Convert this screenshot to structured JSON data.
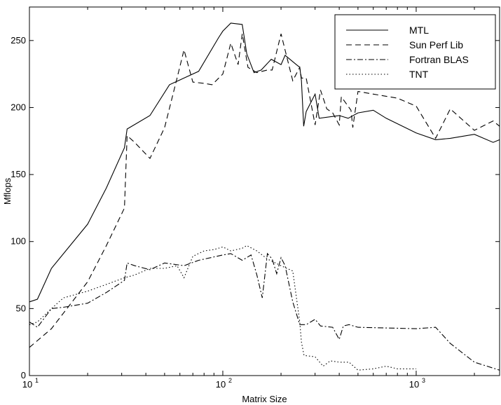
{
  "chart_data": {
    "type": "line",
    "title": "",
    "xlabel": "Matrix Size",
    "ylabel": "Mflops",
    "xscale": "log",
    "xlim": [
      10,
      2700
    ],
    "ylim": [
      0,
      275
    ],
    "grid": false,
    "legend_position": "top-right",
    "xticks": [
      {
        "value": 10,
        "base": "10",
        "exp": "1"
      },
      {
        "value": 100,
        "base": "10",
        "exp": "2"
      },
      {
        "value": 1000,
        "base": "10",
        "exp": "3"
      }
    ],
    "yticks": [
      "0",
      "50",
      "100",
      "150",
      "200",
      "250"
    ],
    "series": [
      {
        "name": "MTL",
        "dash": "solid",
        "points": [
          [
            10,
            55
          ],
          [
            11,
            57
          ],
          [
            13,
            80
          ],
          [
            20,
            113
          ],
          [
            25,
            140
          ],
          [
            31,
            170
          ],
          [
            32,
            184
          ],
          [
            42,
            194
          ],
          [
            53,
            217
          ],
          [
            63,
            222
          ],
          [
            75,
            227
          ],
          [
            95,
            252
          ],
          [
            100,
            257
          ],
          [
            110,
            263
          ],
          [
            126,
            262
          ],
          [
            133,
            240
          ],
          [
            145,
            226
          ],
          [
            158,
            228
          ],
          [
            178,
            236
          ],
          [
            200,
            232
          ],
          [
            210,
            239
          ],
          [
            240,
            232
          ],
          [
            250,
            230
          ],
          [
            255,
            220
          ],
          [
            262,
            186
          ],
          [
            270,
            197
          ],
          [
            300,
            210
          ],
          [
            315,
            192
          ],
          [
            400,
            194
          ],
          [
            445,
            192
          ],
          [
            500,
            196
          ],
          [
            600,
            198
          ],
          [
            700,
            192
          ],
          [
            1000,
            181
          ],
          [
            1260,
            176
          ],
          [
            1500,
            177
          ],
          [
            2000,
            180
          ],
          [
            2500,
            174
          ],
          [
            2700,
            176
          ]
        ]
      },
      {
        "name": "Sun Perf Lib",
        "dash": "dash",
        "points": [
          [
            10,
            21
          ],
          [
            13,
            35
          ],
          [
            20,
            70
          ],
          [
            25,
            97
          ],
          [
            31,
            125
          ],
          [
            32,
            179
          ],
          [
            35,
            174
          ],
          [
            42,
            162
          ],
          [
            50,
            185
          ],
          [
            58,
            222
          ],
          [
            63,
            243
          ],
          [
            70,
            219
          ],
          [
            80,
            218
          ],
          [
            88,
            217
          ],
          [
            100,
            225
          ],
          [
            110,
            248
          ],
          [
            120,
            232
          ],
          [
            126,
            255
          ],
          [
            135,
            230
          ],
          [
            150,
            226
          ],
          [
            170,
            228
          ],
          [
            180,
            228
          ],
          [
            200,
            255
          ],
          [
            230,
            220
          ],
          [
            250,
            230
          ],
          [
            255,
            222
          ],
          [
            270,
            222
          ],
          [
            300,
            187
          ],
          [
            320,
            213
          ],
          [
            345,
            199
          ],
          [
            370,
            196
          ],
          [
            400,
            187
          ],
          [
            410,
            208
          ],
          [
            460,
            198
          ],
          [
            470,
            185
          ],
          [
            500,
            212
          ],
          [
            600,
            210
          ],
          [
            800,
            207
          ],
          [
            1000,
            201
          ],
          [
            1260,
            177
          ],
          [
            1500,
            199
          ],
          [
            2000,
            183
          ],
          [
            2500,
            190
          ],
          [
            2700,
            186
          ]
        ]
      },
      {
        "name": "Fortran BLAS",
        "dash": "dashdot",
        "points": [
          [
            10,
            40
          ],
          [
            11,
            36
          ],
          [
            13,
            50
          ],
          [
            15,
            51
          ],
          [
            20,
            54
          ],
          [
            25,
            62
          ],
          [
            31,
            71
          ],
          [
            32,
            84
          ],
          [
            35,
            82
          ],
          [
            42,
            79
          ],
          [
            50,
            84
          ],
          [
            63,
            82
          ],
          [
            75,
            86
          ],
          [
            100,
            90
          ],
          [
            110,
            91
          ],
          [
            126,
            86
          ],
          [
            140,
            90
          ],
          [
            150,
            75
          ],
          [
            160,
            58
          ],
          [
            170,
            91
          ],
          [
            180,
            87
          ],
          [
            190,
            76
          ],
          [
            200,
            88
          ],
          [
            210,
            82
          ],
          [
            230,
            55
          ],
          [
            250,
            38
          ],
          [
            270,
            38
          ],
          [
            300,
            42
          ],
          [
            320,
            37
          ],
          [
            370,
            36
          ],
          [
            400,
            27
          ],
          [
            420,
            37
          ],
          [
            450,
            38
          ],
          [
            500,
            36
          ],
          [
            1000,
            35
          ],
          [
            1260,
            36
          ],
          [
            1500,
            24
          ],
          [
            2000,
            10
          ],
          [
            2700,
            4
          ]
        ]
      },
      {
        "name": "TNT",
        "dash": "dot",
        "points": [
          [
            10,
            38
          ],
          [
            11,
            40
          ],
          [
            13,
            50
          ],
          [
            15,
            58
          ],
          [
            20,
            63
          ],
          [
            25,
            68
          ],
          [
            31,
            73
          ],
          [
            35,
            75
          ],
          [
            42,
            80
          ],
          [
            50,
            80
          ],
          [
            58,
            82
          ],
          [
            63,
            73
          ],
          [
            70,
            89
          ],
          [
            80,
            93
          ],
          [
            90,
            94
          ],
          [
            100,
            96
          ],
          [
            110,
            93
          ],
          [
            126,
            95
          ],
          [
            133,
            97
          ],
          [
            150,
            93
          ],
          [
            170,
            87
          ],
          [
            200,
            82
          ],
          [
            230,
            78
          ],
          [
            250,
            40
          ],
          [
            255,
            25
          ],
          [
            263,
            15
          ],
          [
            300,
            14
          ],
          [
            330,
            7
          ],
          [
            360,
            11
          ],
          [
            400,
            10
          ],
          [
            450,
            10
          ],
          [
            500,
            4
          ],
          [
            600,
            5
          ],
          [
            700,
            7
          ],
          [
            800,
            5
          ],
          [
            1000,
            5
          ]
        ]
      }
    ]
  }
}
